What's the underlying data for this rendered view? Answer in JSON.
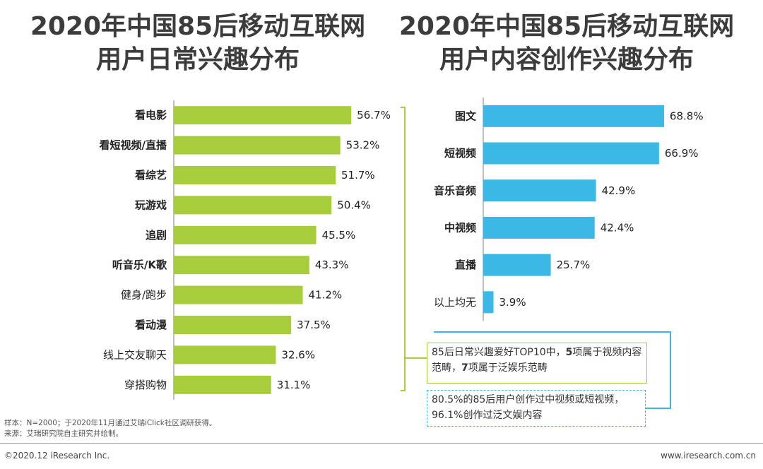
{
  "chart_data": [
    {
      "type": "bar",
      "orientation": "horizontal",
      "title": "2020年中国85后移动互联网用户日常兴趣分布",
      "title_lines": [
        "2020年中国85后移动互联网",
        "用户日常兴趣分布"
      ],
      "categories": [
        "看电影",
        "看短视频/直播",
        "看综艺",
        "玩游戏",
        "追剧",
        "听音乐/K歌",
        "健身/跑步",
        "看动漫",
        "线上交友聊天",
        "穿搭购物"
      ],
      "bold_categories": [
        "看电影",
        "看短视频/直播",
        "看综艺",
        "玩游戏",
        "追剧",
        "听音乐/K歌",
        "看动漫"
      ],
      "values": [
        56.7,
        53.2,
        51.7,
        50.4,
        45.5,
        43.3,
        41.2,
        37.5,
        32.6,
        31.1
      ],
      "value_labels": [
        "56.7%",
        "53.2%",
        "51.7%",
        "50.4%",
        "45.5%",
        "43.3%",
        "41.2%",
        "37.5%",
        "32.6%",
        "31.1%"
      ],
      "unit": "%",
      "xlim": [
        0,
        100
      ],
      "color": "#a8cd3c"
    },
    {
      "type": "bar",
      "orientation": "horizontal",
      "title": "2020年中国85后移动互联网用户内容创作兴趣分布",
      "title_lines": [
        "2020年中国85后移动互联网",
        "用户内容创作兴趣分布"
      ],
      "categories": [
        "图文",
        "短视频",
        "音乐音频",
        "中视频",
        "直播",
        "以上均无"
      ],
      "bold_categories": [
        "图文",
        "短视频",
        "音乐音频",
        "中视频",
        "直播"
      ],
      "values": [
        68.8,
        66.9,
        42.9,
        42.4,
        25.7,
        3.9
      ],
      "value_labels": [
        "68.8%",
        "66.9%",
        "42.9%",
        "42.4%",
        "25.7%",
        "3.9%"
      ],
      "unit": "%",
      "xlim": [
        0,
        100
      ],
      "color": "#3bb8e6"
    }
  ],
  "notes": {
    "note1": {
      "prefix": "85后日常兴趣爱好TOP10中，",
      "n1": "5",
      "mid": "项属于视频内容范畴，",
      "n2": "7",
      "suffix": "项属于泛娱乐范畴"
    },
    "note2": {
      "text": "80.5%的85后用户创作过中视频或短视频，96.1%创作过泛文娱内容"
    }
  },
  "footer": {
    "sample": "样本：N=2000；于2020年11月通过艾瑞iClick社区调研获得。",
    "source": "来源：艾瑞研究院自主研究并绘制。",
    "copyright": "©2020.12 iResearch Inc.",
    "website": "www.iresearch.com.cn"
  },
  "colors": {
    "left_bar": "#a8cd3c",
    "right_bar": "#3bb8e6",
    "axis": "#7f7f7f"
  }
}
